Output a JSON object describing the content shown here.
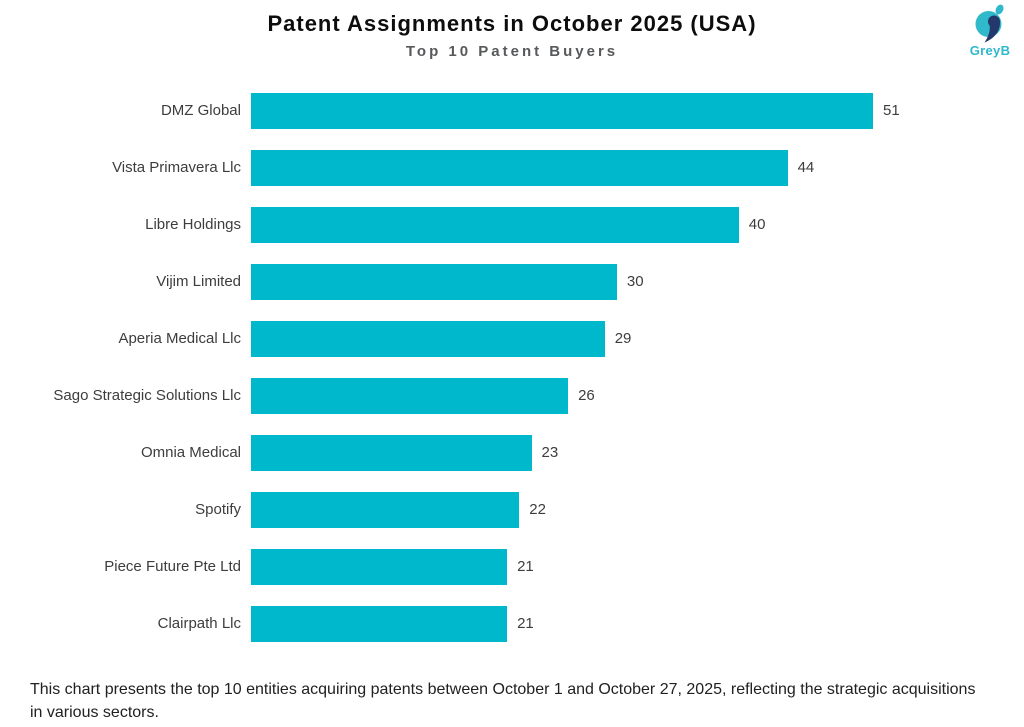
{
  "header": {
    "title": "Patent Assignments in October 2025 (USA)",
    "subtitle": "Top 10 Patent Buyers"
  },
  "logo": {
    "text": "GreyB"
  },
  "chart_data": {
    "type": "bar",
    "orientation": "horizontal",
    "title": "Patent Assignments in October 2025 (USA)",
    "subtitle": "Top 10 Patent Buyers",
    "categories": [
      "DMZ Global",
      "Vista Primavera Llc",
      "Libre Holdings",
      "Vijim Limited",
      "Aperia Medical Llc",
      "Sago Strategic Solutions Llc",
      "Omnia Medical",
      "Spotify",
      "Piece Future Pte Ltd",
      "Clairpath Llc"
    ],
    "values": [
      51,
      44,
      40,
      30,
      29,
      26,
      23,
      22,
      21,
      21
    ],
    "xlabel": "",
    "ylabel": "",
    "xlim": [
      0,
      51
    ],
    "value_labels": true,
    "grid": false,
    "legend": false,
    "bar_color": "#00b8cb"
  },
  "caption": {
    "text": "This chart presents the top 10 entities acquiring patents between October 1 and October 27, 2025, reflecting the strategic acquisitions in various sectors."
  },
  "colors": {
    "bar": "#00b8cb",
    "title": "#0d0d0d",
    "subtitle": "#58595b",
    "label": "#3d3d3d",
    "value": "#3d3d3d",
    "caption": "#212121",
    "logo_teal": "#30b8cb",
    "logo_navy": "#24386b"
  }
}
